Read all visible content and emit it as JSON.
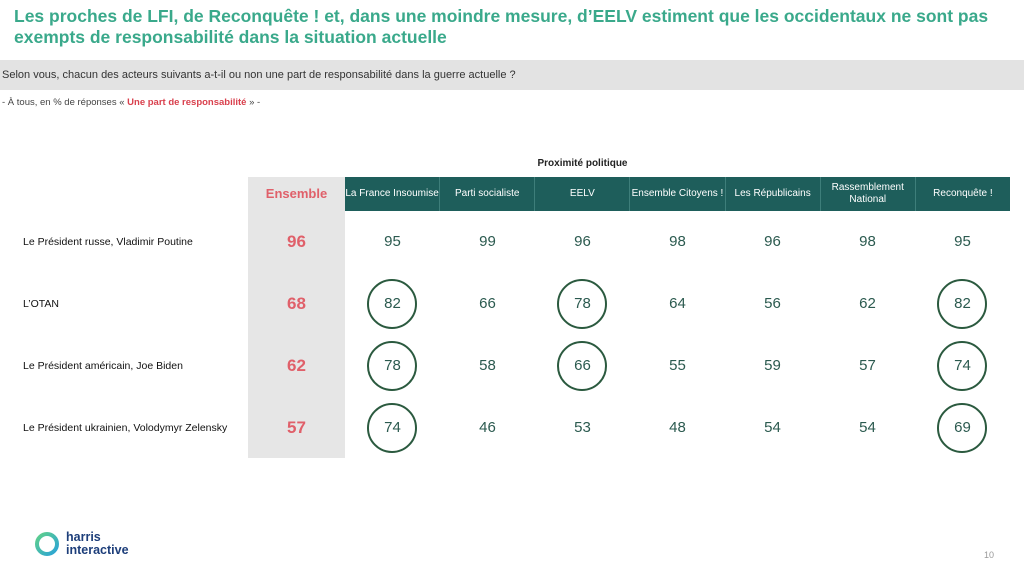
{
  "title": "Les proches de LFI, de Reconquête ! et, dans une moindre mesure, d’EELV estiment que les occidentaux ne sont pas exempts de responsabilité dans la situation actuelle",
  "question": "Selon vous, chacun des acteurs suivants a-t-il ou non une part de responsabilité dans la guerre actuelle ?",
  "base": {
    "prefix": "- À tous, en % de réponses « ",
    "highlight": "Une part de responsabilité",
    "suffix": " » -"
  },
  "footer": {
    "logo": "harris interactive",
    "page": "10"
  },
  "colors": {
    "title": "#3aa98b",
    "header": "#1e5e5b",
    "ensemble": "#e0606a",
    "circle": "#2b5a3f"
  },
  "chart_data": {
    "type": "table",
    "group_label": "Proximité politique",
    "total_label": "Ensemble",
    "columns": [
      "La France Insoumise",
      "Parti socialiste",
      "EELV",
      "Ensemble Citoyens !",
      "Les Républicains",
      "Rassemblement National",
      "Reconquête !"
    ],
    "rows": [
      {
        "label": "Le Président russe, Vladimir Poutine",
        "ensemble": 96,
        "values": [
          95,
          99,
          96,
          98,
          96,
          98,
          95
        ],
        "circled": []
      },
      {
        "label": "L’OTAN",
        "ensemble": 68,
        "values": [
          82,
          66,
          78,
          64,
          56,
          62,
          82
        ],
        "circled": [
          0,
          2,
          6
        ]
      },
      {
        "label": "Le Président américain, Joe Biden",
        "ensemble": 62,
        "values": [
          78,
          58,
          66,
          55,
          59,
          57,
          74
        ],
        "circled": [
          0,
          2,
          6
        ]
      },
      {
        "label": "Le Président ukrainien, Volodymyr Zelensky",
        "ensemble": 57,
        "values": [
          74,
          46,
          53,
          48,
          54,
          54,
          69
        ],
        "circled": [
          0,
          6
        ]
      }
    ]
  }
}
